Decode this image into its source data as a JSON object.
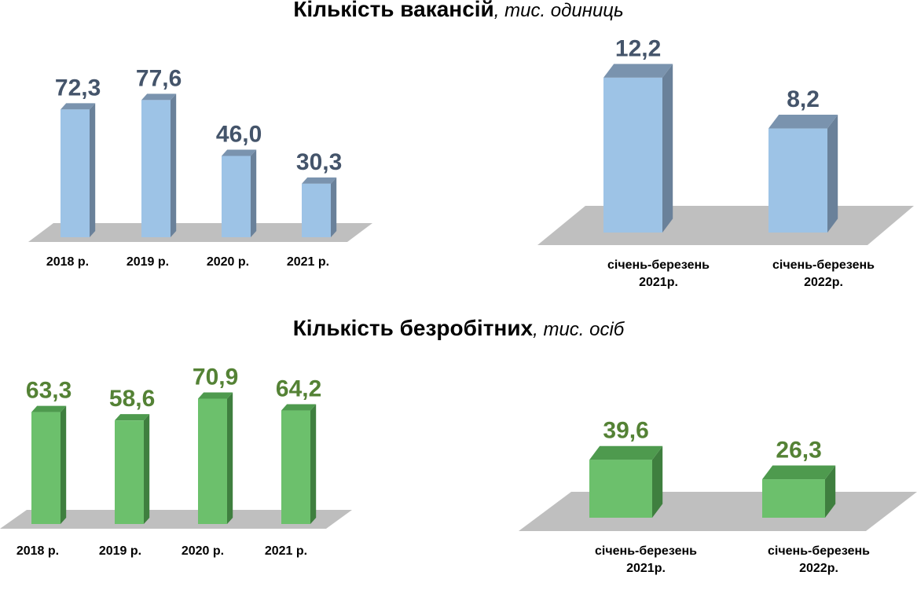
{
  "titles": {
    "vacancies": {
      "main": "Кількість вакансій",
      "unit": ", тис.  одиниць"
    },
    "unemployed": {
      "main": "Кількість безробітних",
      "unit": ", тис. осіб"
    }
  },
  "colors": {
    "blue_front": "#9DC3E6",
    "blue_side": "#6A819A",
    "blue_top": "#7A93AE",
    "blue_label": "#44546A",
    "green_front": "#6CC06C",
    "green_side": "#3F7F3F",
    "green_top": "#4E9A4E",
    "green_label": "#548235",
    "floor": "#BFBFBF"
  },
  "chart_data": [
    {
      "type": "bar",
      "categories": [
        "2018 р.",
        "2019 р.",
        "2020 р.",
        "2021 р."
      ],
      "values": [
        72.3,
        77.6,
        46.0,
        30.3
      ],
      "value_labels": [
        "72,3",
        "77,6",
        "46,0",
        "30,3"
      ],
      "ylim": [
        0,
        80
      ]
    },
    {
      "type": "bar",
      "categories": [
        "січень-березень 2021р.",
        "січень-березень 2022р."
      ],
      "category_lines": [
        [
          "січень-березень",
          "2021р."
        ],
        [
          "січень-березень",
          "2022р."
        ]
      ],
      "values": [
        12.2,
        8.2
      ],
      "value_labels": [
        "12,2",
        "8,2"
      ],
      "ylim": [
        0,
        13
      ]
    },
    {
      "type": "bar",
      "categories": [
        "2018 р.",
        "2019 р.",
        "2020 р.",
        "2021 р."
      ],
      "values": [
        63.3,
        58.6,
        70.9,
        64.2
      ],
      "value_labels": [
        "63,3",
        "58,6",
        "70,9",
        "64,2"
      ],
      "ylim": [
        0,
        80
      ]
    },
    {
      "type": "bar",
      "categories": [
        "січень-березень 2021р.",
        "січень-березень 2022р."
      ],
      "category_lines": [
        [
          "січень-березень",
          "2021р."
        ],
        [
          "січень-березень",
          "2022р."
        ]
      ],
      "values": [
        39.6,
        26.3
      ],
      "value_labels": [
        "39,6",
        "26,3"
      ],
      "ylim": [
        0,
        100
      ]
    }
  ]
}
